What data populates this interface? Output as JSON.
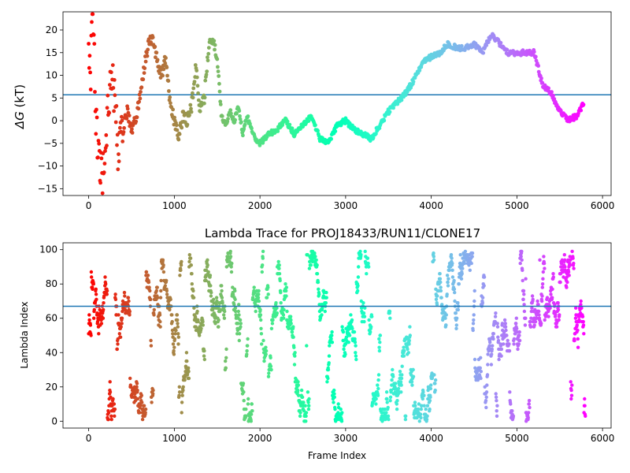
{
  "chart_data": [
    {
      "type": "scatter",
      "title": "",
      "xlabel": "",
      "ylabel": "ΔG (kT)",
      "ylabel_symbol": "ΔG",
      "ylabel_unit": " (kT)",
      "xlim": [
        -300,
        6100
      ],
      "ylim": [
        -16.5,
        24
      ],
      "xticks": [
        0,
        1000,
        2000,
        3000,
        4000,
        5000,
        6000
      ],
      "yticks": [
        -15,
        -10,
        -5,
        0,
        5,
        10,
        15,
        20
      ],
      "hline": 5.7,
      "hline_color": "#1f77b4",
      "colormap": "rainbow_r",
      "grid": false,
      "series": [
        {
          "x": [
            0,
            20,
            40,
            60,
            80,
            100,
            130,
            160,
            190,
            220,
            260,
            300,
            350,
            400,
            450,
            500,
            550,
            600,
            650,
            700,
            750,
            800,
            850,
            900,
            950,
            1000,
            1050,
            1100,
            1150,
            1200,
            1250,
            1300,
            1350,
            1400,
            1430,
            1460,
            1500,
            1550,
            1600,
            1650,
            1700,
            1750,
            1800,
            1850,
            1900,
            1950,
            2000,
            2100,
            2200,
            2300,
            2400,
            2500,
            2600,
            2700,
            2800,
            2900,
            3000,
            3100,
            3200,
            3300,
            3400,
            3500,
            3600,
            3700,
            3800,
            3900,
            4000,
            4100,
            4200,
            4300,
            4400,
            4500,
            4600,
            4700,
            4800,
            4900,
            5000,
            5100,
            5200,
            5300,
            5400,
            5500,
            5600,
            5700,
            5780
          ],
          "y": [
            20,
            7,
            23,
            18,
            3,
            -4,
            -10,
            -14,
            -6,
            2,
            11,
            6,
            -8,
            -2,
            2,
            -2,
            0,
            6,
            12,
            17,
            18,
            13,
            10,
            14,
            4,
            0,
            -4,
            1,
            0,
            3,
            12,
            2,
            5,
            16,
            18,
            17,
            14,
            1,
            -1,
            2,
            0,
            3,
            -3,
            1,
            -2,
            -4,
            -5,
            -3,
            -2,
            0,
            -3,
            -1,
            1,
            -4,
            -5,
            -1,
            0,
            -2,
            -3,
            -4,
            -1,
            2,
            4,
            6,
            9,
            13,
            14,
            15,
            17,
            16,
            16,
            17,
            15,
            19,
            17,
            15,
            15,
            15,
            15,
            8,
            6,
            2,
            0.2,
            1,
            4
          ]
        }
      ]
    },
    {
      "type": "scatter",
      "title": "Lambda Trace for PROJ18433/RUN11/CLONE17",
      "xlabel": "Frame Index",
      "ylabel": "Lambda Index",
      "xlim": [
        -300,
        6100
      ],
      "ylim": [
        -4,
        104
      ],
      "xticks": [
        0,
        1000,
        2000,
        3000,
        4000,
        5000,
        6000
      ],
      "yticks": [
        0,
        20,
        40,
        60,
        80,
        100
      ],
      "hline": 67,
      "hline_color": "#1f77b4",
      "colormap": "rainbow_r",
      "grid": false,
      "lambda_range": [
        0,
        99
      ],
      "frame_count": 5800
    }
  ]
}
